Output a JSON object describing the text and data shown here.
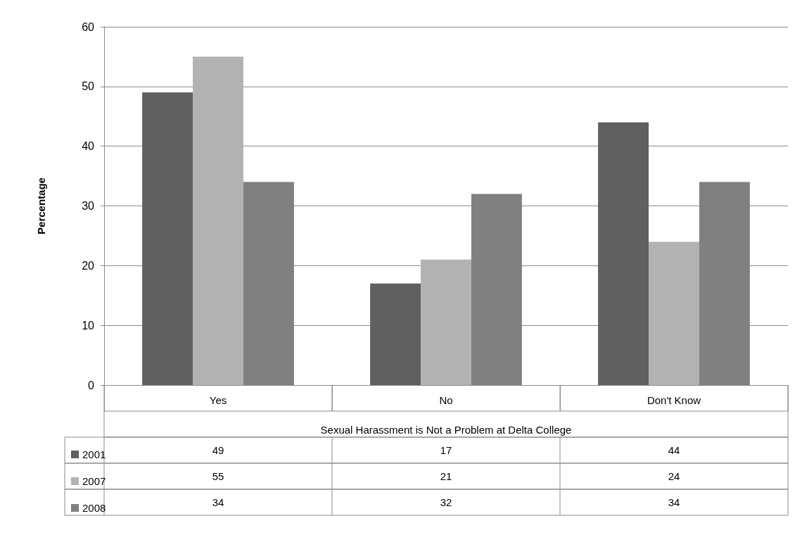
{
  "chart_data": {
    "type": "bar",
    "xlabel": "Sexual Harassment is Not a Problem at Delta College",
    "ylabel": "Percentage",
    "categories": [
      "Yes",
      "No",
      "Don't Know"
    ],
    "series": [
      {
        "name": "2001",
        "color": "#606060",
        "values": [
          49,
          17,
          44
        ]
      },
      {
        "name": "2007",
        "color": "#b2b2b2",
        "values": [
          55,
          21,
          24
        ]
      },
      {
        "name": "2008",
        "color": "#808080",
        "values": [
          34,
          32,
          34
        ]
      }
    ],
    "ylim": [
      0,
      60
    ],
    "yticks": [
      0,
      10,
      20,
      30,
      40,
      50,
      60
    ],
    "grid": "y",
    "legend": "bottom",
    "data_labels": true
  }
}
